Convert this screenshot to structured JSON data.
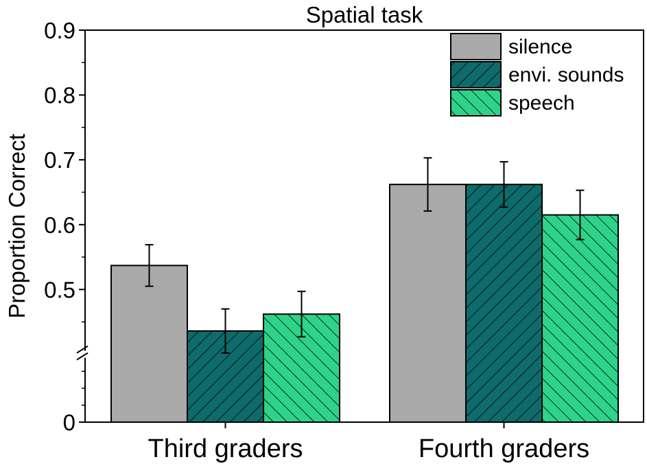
{
  "chart_data": {
    "type": "bar",
    "title": "Spatial task",
    "xlabel": "",
    "ylabel": "Proportion Correct",
    "categories": [
      "Third graders",
      "Fourth graders"
    ],
    "series": [
      {
        "name": "silence",
        "values": [
          0.537,
          0.662
        ],
        "error": [
          0.032,
          0.041
        ],
        "color": "#a9a9a9",
        "pattern": "none"
      },
      {
        "name": "envi. sounds",
        "values": [
          0.436,
          0.662
        ],
        "error": [
          0.034,
          0.035
        ],
        "color": "#0e6b6b",
        "pattern": "diagonal-up"
      },
      {
        "name": "speech",
        "values": [
          0.462,
          0.615
        ],
        "error": [
          0.035,
          0.038
        ],
        "color": "#2ed38a",
        "pattern": "diagonal-down"
      }
    ],
    "ylim": [
      0,
      0.9
    ],
    "yaxis_break": [
      0,
      0.4
    ],
    "yticks": [
      "0",
      "0.5",
      "0.6",
      "0.7",
      "0.8",
      "0.9"
    ],
    "legend_position": "top-right",
    "grid": false
  }
}
